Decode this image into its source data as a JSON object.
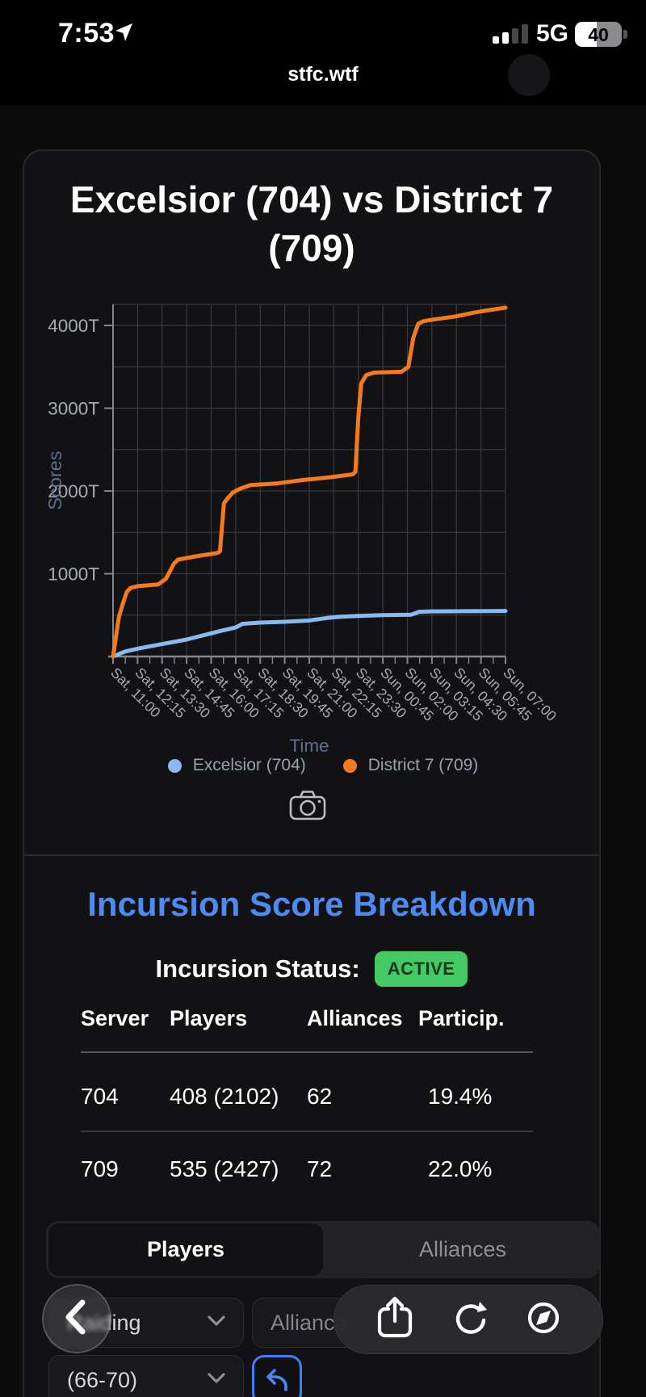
{
  "status_bar": {
    "time": "7:53",
    "network": "5G",
    "battery": "40"
  },
  "browser": {
    "url": "stfc.wtf"
  },
  "chart_card": {
    "title": "Excelsior (704) vs District 7 (709)",
    "legend": [
      {
        "label": "Excelsior (704)",
        "color": "#8ab9f1"
      },
      {
        "label": "District 7 (709)",
        "color": "#f5791d"
      }
    ]
  },
  "chart_data": {
    "type": "line",
    "title": "Excelsior (704) vs District 7 (709)",
    "xlabel": "Time",
    "ylabel": "Scores",
    "unit": "T",
    "ylim": [
      0,
      4250
    ],
    "grid": true,
    "legend_position": "bottom",
    "x_tick_labels": [
      "Sat, 11:00",
      "Sat, 12:15",
      "Sat, 13:30",
      "Sat, 14:45",
      "Sat, 16:00",
      "Sat, 17:15",
      "Sat, 18:30",
      "Sat, 19:45",
      "Sat, 21:00",
      "Sat, 22:15",
      "Sat, 23:30",
      "Sun, 00:45",
      "Sun, 02:00",
      "Sun, 03:15",
      "Sun, 04:30",
      "Sun, 05:45",
      "Sun, 07:00"
    ],
    "y_tick_labels": [
      "1000T",
      "2000T",
      "3000T",
      "4000T"
    ],
    "x_hours_span": 20,
    "series": [
      {
        "name": "Excelsior (704)",
        "color": "#8ab9f1",
        "points": [
          [
            0,
            0
          ],
          [
            0.6,
            60
          ],
          [
            1.25,
            95
          ],
          [
            2.5,
            150
          ],
          [
            3.3,
            185
          ],
          [
            3.75,
            205
          ],
          [
            5,
            280
          ],
          [
            5.5,
            310
          ],
          [
            6.25,
            350
          ],
          [
            6.6,
            395
          ],
          [
            7.5,
            410
          ],
          [
            8.75,
            420
          ],
          [
            10,
            435
          ],
          [
            10.9,
            465
          ],
          [
            11.6,
            480
          ],
          [
            12.5,
            490
          ],
          [
            13.75,
            500
          ],
          [
            15.2,
            505
          ],
          [
            15.6,
            540
          ],
          [
            16.25,
            545
          ],
          [
            20,
            550
          ]
        ]
      },
      {
        "name": "District 7 (709)",
        "color": "#f5791d",
        "points": [
          [
            0,
            0
          ],
          [
            0.3,
            480
          ],
          [
            0.5,
            640
          ],
          [
            0.7,
            780
          ],
          [
            0.9,
            830
          ],
          [
            1.25,
            850
          ],
          [
            2.3,
            870
          ],
          [
            2.7,
            940
          ],
          [
            3.1,
            1120
          ],
          [
            3.3,
            1170
          ],
          [
            4.2,
            1210
          ],
          [
            5.3,
            1250
          ],
          [
            5.45,
            1270
          ],
          [
            5.65,
            1850
          ],
          [
            5.8,
            1900
          ],
          [
            6.1,
            1980
          ],
          [
            6.5,
            2030
          ],
          [
            7,
            2070
          ],
          [
            8.3,
            2090
          ],
          [
            9.6,
            2130
          ],
          [
            11.2,
            2170
          ],
          [
            12.2,
            2200
          ],
          [
            12.35,
            2230
          ],
          [
            12.5,
            2900
          ],
          [
            12.65,
            3300
          ],
          [
            12.9,
            3400
          ],
          [
            13.3,
            3430
          ],
          [
            14.7,
            3440
          ],
          [
            15.05,
            3500
          ],
          [
            15.3,
            3850
          ],
          [
            15.55,
            4020
          ],
          [
            15.8,
            4050
          ],
          [
            16.3,
            4070
          ],
          [
            17.5,
            4110
          ],
          [
            18.3,
            4150
          ],
          [
            19,
            4180
          ],
          [
            20,
            4215
          ]
        ]
      }
    ]
  },
  "breakdown": {
    "title": "Incursion Score Breakdown",
    "status_label": "Incursion Status:",
    "status_value": "ACTIVE",
    "status_color": "#45c964",
    "table": {
      "headers": [
        "Server",
        "Players",
        "Alliances",
        "Particip."
      ],
      "rows": [
        [
          "704",
          "408 (2102)",
          "62",
          "19.4%"
        ],
        [
          "709",
          "535 (2427)",
          "72",
          "22.0%"
        ]
      ]
    },
    "tabs": [
      {
        "label": "Players",
        "selected": true
      },
      {
        "label": "Alliances",
        "selected": false
      }
    ],
    "filters": {
      "category": "Raiding",
      "alliance": "Alliance",
      "levels": "(66-70)"
    }
  }
}
